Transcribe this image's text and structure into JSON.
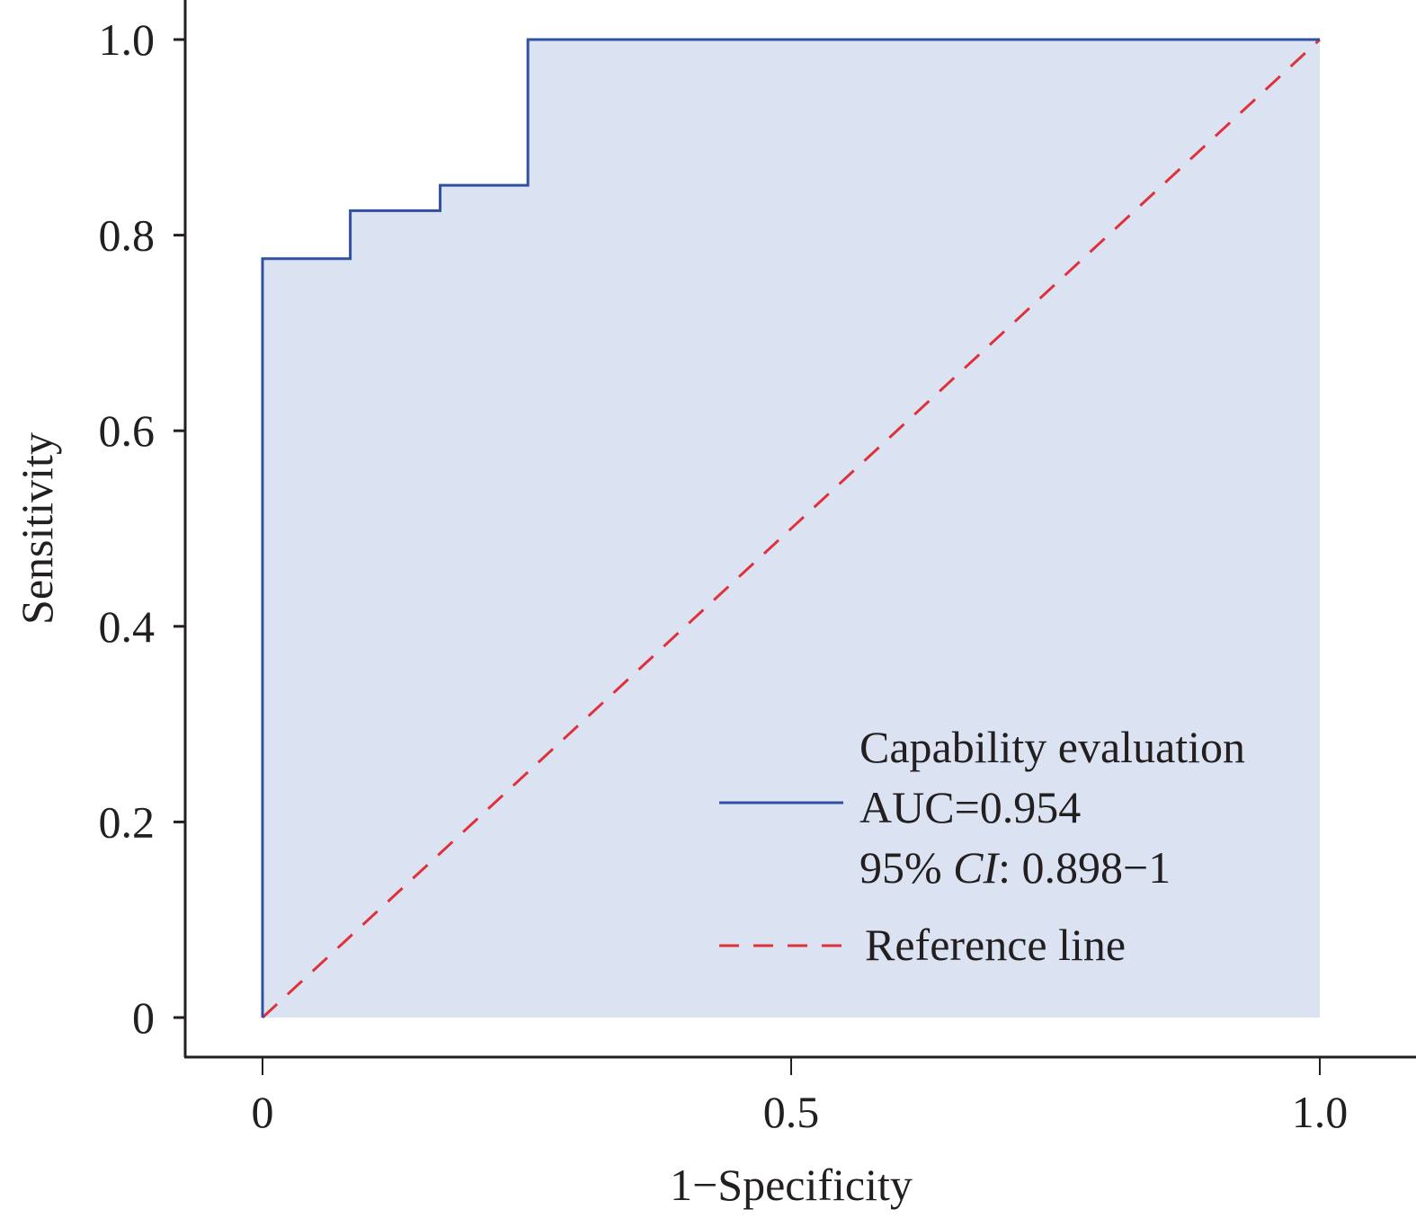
{
  "chart_data": {
    "type": "line",
    "title": "",
    "xlabel": "1−Specificity",
    "ylabel": "Sensitivity",
    "xlim": [
      0,
      1
    ],
    "ylim": [
      0,
      1
    ],
    "grid": false,
    "x_ticks": [
      0,
      0.5,
      1.0
    ],
    "x_tick_labels": [
      "0",
      "0.5",
      "1.0"
    ],
    "y_ticks": [
      0,
      0.2,
      0.4,
      0.6,
      0.8,
      1.0
    ],
    "y_tick_labels": [
      "0",
      "0.2",
      "0.4",
      "0.6",
      "0.8",
      "1.0"
    ],
    "series": [
      {
        "name": "Capability evaluation",
        "style": "step-solid",
        "color": "#3050a0",
        "fill_color": "#dbe2f2",
        "x": [
          0,
          0,
          0.083,
          0.083,
          0.168,
          0.168,
          0.251,
          0.251,
          1.0
        ],
        "y": [
          0,
          0.776,
          0.776,
          0.825,
          0.825,
          0.851,
          0.851,
          1.0,
          1.0
        ]
      },
      {
        "name": "Reference line",
        "style": "dashed",
        "color": "#e0303a",
        "x": [
          0,
          1
        ],
        "y": [
          0,
          1
        ]
      }
    ],
    "legend": {
      "position": "bottom-right",
      "entries": [
        {
          "series": "Capability evaluation",
          "lines": [
            "Capability evaluation",
            "AUC=0.954"
          ],
          "ci_prefix": "95% ",
          "ci_italic": "CI",
          "ci_suffix": ": 0.898−1"
        },
        {
          "series": "Reference line",
          "lines": [
            "Reference line"
          ]
        }
      ]
    },
    "annotations": {
      "auc": 0.954,
      "ci_95": [
        0.898,
        1
      ]
    }
  }
}
